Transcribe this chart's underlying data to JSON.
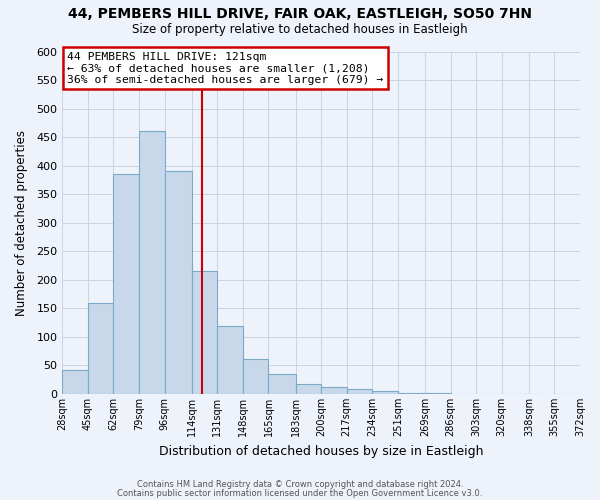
{
  "title": "44, PEMBERS HILL DRIVE, FAIR OAK, EASTLEIGH, SO50 7HN",
  "subtitle": "Size of property relative to detached houses in Eastleigh",
  "xlabel": "Distribution of detached houses by size in Eastleigh",
  "ylabel": "Number of detached properties",
  "bin_edges": [
    28,
    45,
    62,
    79,
    96,
    114,
    131,
    148,
    165,
    183,
    200,
    217,
    234,
    251,
    269,
    286,
    303,
    320,
    338,
    355,
    372
  ],
  "bin_labels": [
    "28sqm",
    "45sqm",
    "62sqm",
    "79sqm",
    "96sqm",
    "114sqm",
    "131sqm",
    "148sqm",
    "165sqm",
    "183sqm",
    "200sqm",
    "217sqm",
    "234sqm",
    "251sqm",
    "269sqm",
    "286sqm",
    "303sqm",
    "320sqm",
    "338sqm",
    "355sqm",
    "372sqm"
  ],
  "counts": [
    42,
    160,
    385,
    460,
    390,
    215,
    120,
    62,
    35,
    17,
    13,
    8,
    5,
    2,
    1,
    0,
    0,
    0,
    0,
    0
  ],
  "bar_color": "#c8d8ea",
  "bar_edge_color": "#7aaac8",
  "vline_x": 121,
  "vline_color": "#cc0000",
  "annotation_title": "44 PEMBERS HILL DRIVE: 121sqm",
  "annotation_line1": "← 63% of detached houses are smaller (1,208)",
  "annotation_line2": "36% of semi-detached houses are larger (679) →",
  "annotation_box_facecolor": "#ffffff",
  "annotation_box_edgecolor": "#cc0000",
  "grid_color": "#c8d4e4",
  "background_color": "#eef2fa",
  "ylim": [
    0,
    600
  ],
  "yticks": [
    0,
    50,
    100,
    150,
    200,
    250,
    300,
    350,
    400,
    450,
    500,
    550,
    600
  ],
  "footer_line1": "Contains HM Land Registry data © Crown copyright and database right 2024.",
  "footer_line2": "Contains public sector information licensed under the Open Government Licence v3.0."
}
